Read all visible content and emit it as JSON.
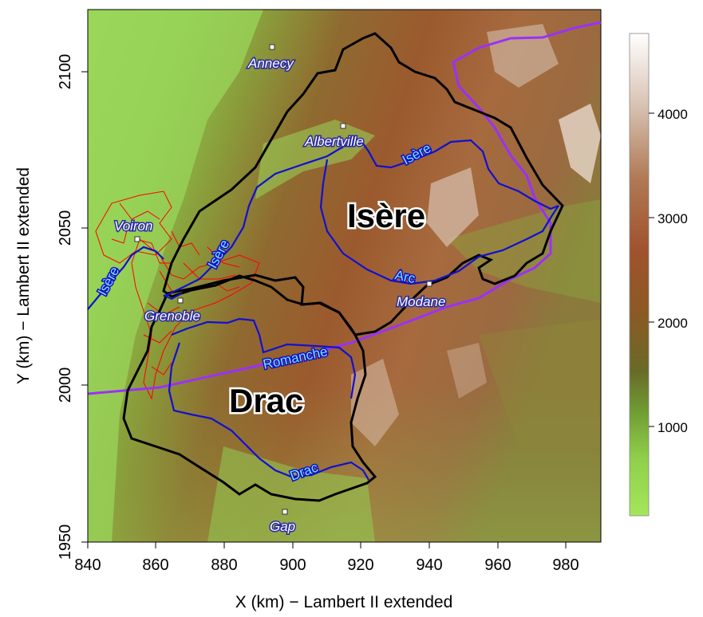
{
  "map": {
    "x_axis_title": "X (km) − Lambert II extended",
    "y_axis_title": "Y (km) − Lambert II extended",
    "x_ticks": [
      "840",
      "860",
      "880",
      "900",
      "920",
      "940",
      "960",
      "980"
    ],
    "y_ticks": [
      "1950",
      "2000",
      "2050",
      "2100"
    ],
    "x_range_km": [
      840,
      990
    ],
    "y_range_km": [
      1949,
      2120
    ],
    "colorbar": {
      "ticks": [
        "1000",
        "2000",
        "3000",
        "4000"
      ],
      "range_m": [
        130,
        4760
      ],
      "colors": [
        "#a6e65c",
        "#7dbb3c",
        "#5a7a2a",
        "#8b5a2b",
        "#a0522d",
        "#b98a6a",
        "#e0cfc4",
        "#ffffff"
      ]
    },
    "basins": [
      "Isère",
      "Drac"
    ],
    "cities": [
      "Annecy",
      "Albertville",
      "Voiron",
      "Grenoble",
      "Modane",
      "Gap"
    ],
    "rivers": [
      "Isère",
      "Isère",
      "Isère",
      "Arc",
      "Romanche",
      "Drac"
    ],
    "colors": {
      "basin_outline": "#000000",
      "river": "#1010d0",
      "border": "#9b30ff",
      "catchments": "#ff0000",
      "city_marker": "#ffffff"
    }
  }
}
